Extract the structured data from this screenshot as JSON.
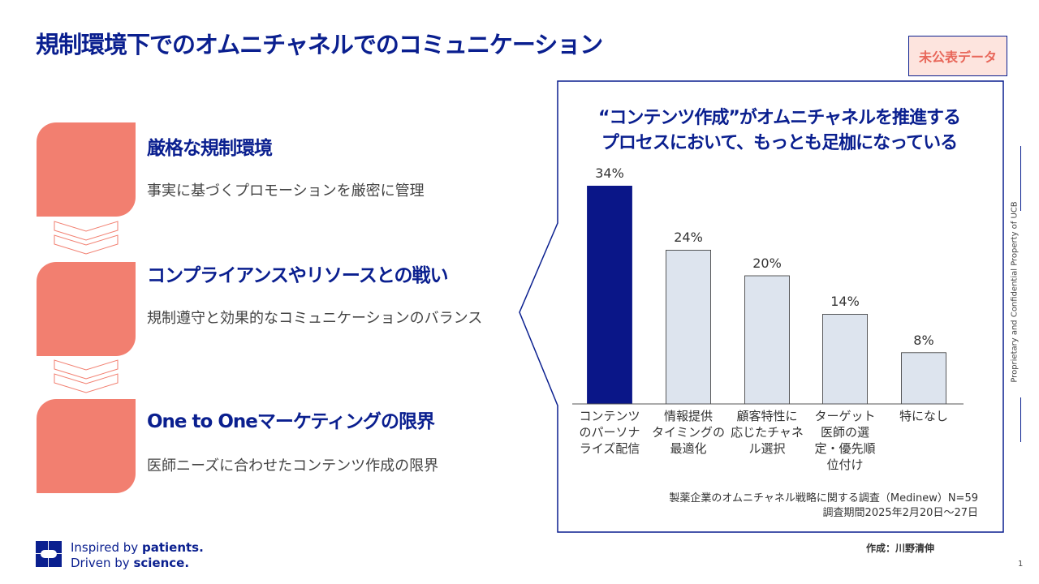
{
  "title": "規制環境下でのオムニチャネルでのコミュニケーション",
  "badge": "未公表データ",
  "items": [
    {
      "heading": "厳格な規制環境",
      "desc": "事実に基づくプロモーションを厳密に管理"
    },
    {
      "heading": "コンプライアンスやリソースとの戦い",
      "desc": "規制遵守と効果的なコミュニケーションのバランス"
    },
    {
      "heading": "One to Oneマーケティングの限界",
      "desc": "医師ニーズに合わせたコンテンツ作成の限界"
    }
  ],
  "chart_data": {
    "type": "bar",
    "title": "“コンテンツ作成”がオムニチャネルを推進するプロセスにおいて、もっとも足枷になっている",
    "title_lines": [
      "“コンテンツ作成”がオムニチャネルを推進する",
      "プロセスにおいて、もっとも足枷になっている"
    ],
    "categories": [
      "コンテンツのパーソナライズ配信",
      "情報提供タイミングの最適化",
      "顧客特性に応じたチャネル選択",
      "ターゲット医師の選定・優先順位付け",
      "特になし"
    ],
    "category_lines": [
      [
        "コンテンツ",
        "のパーソナ",
        "ライズ配信"
      ],
      [
        "情報提供",
        "タイミングの",
        "最適化"
      ],
      [
        "顧客特性に",
        "応じたチャネ",
        "ル選択"
      ],
      [
        "ターゲット",
        "医師の選",
        "定・優先順",
        "位付け"
      ],
      [
        "特になし"
      ]
    ],
    "values": [
      34,
      24,
      20,
      14,
      8
    ],
    "value_labels": [
      "34%",
      "24%",
      "20%",
      "14%",
      "8%"
    ],
    "colors": [
      "#0a1688",
      "#dde4ee",
      "#dde4ee",
      "#dde4ee",
      "#dde4ee"
    ],
    "highlight_color": "#0a1688"
  },
  "source": [
    "製薬企業のオムニチャネル戦略に関する調査（Medinew）N=59",
    "調査期間2025年2月20日～27日"
  ],
  "author": "作成：川野清伸",
  "side_text": "Proprietary and Confidential Property of UCB",
  "page_number": "1",
  "logo": {
    "text": "ucb",
    "tagline": [
      "Inspired by ",
      "patients.",
      "Driven by ",
      "science."
    ]
  }
}
